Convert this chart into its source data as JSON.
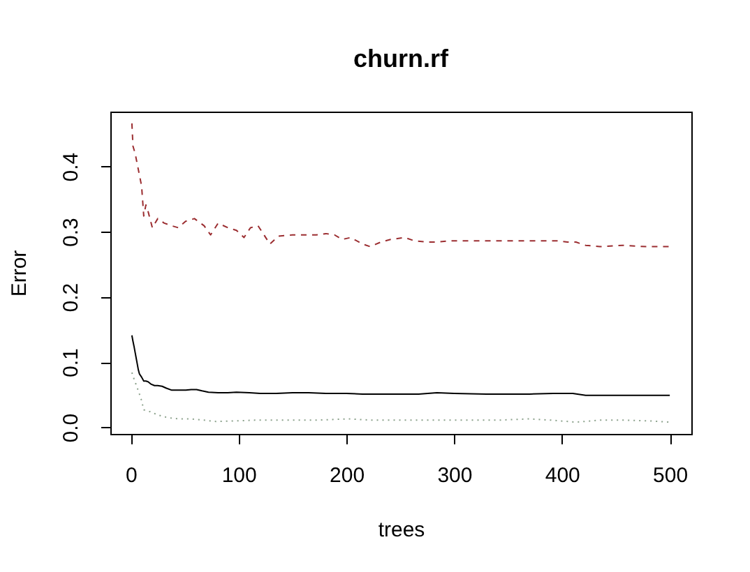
{
  "chart_data": {
    "type": "line",
    "title": "churn.rf",
    "xlabel": "trees",
    "ylabel": "Error",
    "xlim": [
      -19,
      520
    ],
    "xticks": [
      0,
      100,
      200,
      300,
      400,
      500
    ],
    "ylim": [
      -0.01,
      0.484
    ],
    "yticks": [
      {
        "value": 0,
        "label": "0.0"
      },
      0.1,
      0.2,
      0.3,
      0.4
    ],
    "grid": false,
    "legend": false,
    "series": [
      {
        "color": "#000000",
        "line_style": "solid",
        "x": [
          1,
          2,
          3,
          4,
          5,
          6,
          7,
          8,
          10,
          12,
          14,
          16,
          19,
          22,
          25,
          29,
          33,
          38,
          45,
          51,
          56,
          61,
          66,
          72,
          81,
          90,
          98,
          110,
          120,
          135,
          150,
          165,
          181,
          200,
          215,
          240,
          267,
          284,
          300,
          330,
          350,
          370,
          392,
          410,
          422,
          440,
          460,
          480,
          500
        ],
        "values": [
          0.141,
          0.132,
          0.124,
          0.115,
          0.106,
          0.097,
          0.088,
          0.082,
          0.077,
          0.071,
          0.071,
          0.07,
          0.066,
          0.064,
          0.064,
          0.063,
          0.06,
          0.057,
          0.057,
          0.057,
          0.058,
          0.058,
          0.056,
          0.054,
          0.053,
          0.053,
          0.054,
          0.053,
          0.052,
          0.052,
          0.053,
          0.053,
          0.052,
          0.052,
          0.051,
          0.051,
          0.051,
          0.053,
          0.052,
          0.051,
          0.051,
          0.051,
          0.052,
          0.052,
          0.049,
          0.049,
          0.049,
          0.049,
          0.049
        ]
      },
      {
        "color": "#9b2d30",
        "line_style": "dashed",
        "x": [
          1,
          2,
          4,
          7,
          10,
          12,
          14,
          16,
          20,
          25,
          31,
          38,
          44,
          51,
          59,
          68,
          74,
          81,
          90,
          98,
          105,
          111,
          118,
          122,
          129,
          137,
          150,
          159,
          172,
          181,
          189,
          196,
          204,
          215,
          222,
          232,
          241,
          254,
          263,
          275,
          284,
          297,
          310,
          327,
          340,
          353,
          370,
          385,
          396,
          405,
          413,
          422,
          435,
          456,
          478,
          500
        ],
        "values": [
          0.466,
          0.431,
          0.42,
          0.395,
          0.37,
          0.324,
          0.341,
          0.331,
          0.306,
          0.32,
          0.313,
          0.309,
          0.306,
          0.316,
          0.32,
          0.309,
          0.295,
          0.313,
          0.306,
          0.302,
          0.291,
          0.306,
          0.309,
          0.299,
          0.281,
          0.293,
          0.295,
          0.295,
          0.295,
          0.297,
          0.295,
          0.288,
          0.291,
          0.281,
          0.277,
          0.284,
          0.288,
          0.291,
          0.286,
          0.284,
          0.284,
          0.286,
          0.286,
          0.286,
          0.286,
          0.286,
          0.286,
          0.286,
          0.286,
          0.284,
          0.284,
          0.279,
          0.277,
          0.279,
          0.277,
          0.277
        ]
      },
      {
        "color": "#8aa08a",
        "line_style": "dotted",
        "x": [
          1,
          3,
          5,
          7,
          10,
          12,
          15,
          18,
          25,
          32,
          38,
          45,
          55,
          68,
          79,
          98,
          115,
          129,
          150,
          172,
          202,
          224,
          240,
          267,
          300,
          340,
          370,
          390,
          413,
          435,
          460,
          480,
          500
        ],
        "values": [
          0.084,
          0.074,
          0.065,
          0.056,
          0.041,
          0.027,
          0.025,
          0.024,
          0.019,
          0.016,
          0.014,
          0.013,
          0.013,
          0.011,
          0.009,
          0.01,
          0.011,
          0.011,
          0.011,
          0.011,
          0.013,
          0.011,
          0.011,
          0.011,
          0.011,
          0.011,
          0.013,
          0.011,
          0.008,
          0.011,
          0.011,
          0.01,
          0.008
        ]
      }
    ]
  }
}
